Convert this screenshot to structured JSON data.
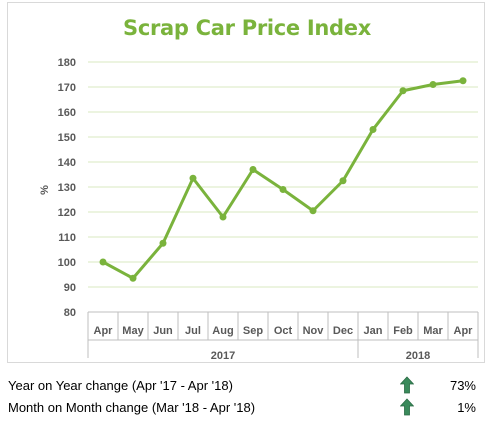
{
  "chart_data": {
    "type": "line",
    "title": "Scrap Car Price Index",
    "ylabel": "%",
    "ylim": [
      80,
      180
    ],
    "yticks": [
      80,
      90,
      100,
      110,
      120,
      130,
      140,
      150,
      160,
      170,
      180
    ],
    "grid": true,
    "categories": [
      "Apr",
      "May",
      "Jun",
      "Jul",
      "Aug",
      "Sep",
      "Oct",
      "Nov",
      "Dec",
      "Jan",
      "Feb",
      "Mar",
      "Apr"
    ],
    "groups": [
      {
        "label": "2017",
        "start": 0,
        "end": 8
      },
      {
        "label": "2018",
        "start": 9,
        "end": 12
      }
    ],
    "series": [
      {
        "color": "#7ab33c",
        "values": [
          100,
          93.5,
          107.5,
          133.5,
          118,
          137,
          129,
          120.5,
          132.5,
          153,
          168.5,
          171,
          172.5
        ]
      }
    ]
  },
  "stats": [
    {
      "label": "Year on Year change (Apr '17 - Apr '18)",
      "value": "73%",
      "icon": "up-arrow-icon"
    },
    {
      "label": "Month on Month change (Mar '18 - Apr '18)",
      "value": "1%",
      "icon": "up-arrow-icon"
    }
  ],
  "colors": {
    "accent": "#7ab33c",
    "arrow": "#3a8a5b"
  }
}
